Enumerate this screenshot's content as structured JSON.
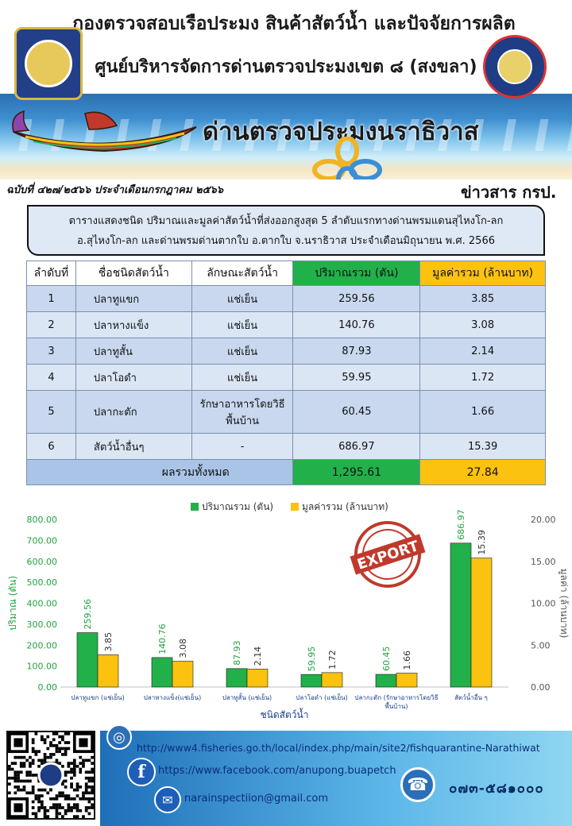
{
  "header": {
    "title_line1": "กองตรวจสอบเรือประมง สินค้าสัตว์น้ำ และปัจจัยการผลิต",
    "title_line2": "ศูนย์บริหารจัดการด่านตรวจประมงเขต ๘ (สงขลา)",
    "checkpoint_title": "ด่านตรวจประมงนราธิวาส",
    "issue": "ฉบับที่ ๔๒๗/๒๕๖๖ ประจำเดือนกรกฎาคม ๒๕๖๖",
    "news_label": "ข่าวสาร กรป.",
    "colors": {
      "sea": "#2a6fb0",
      "sand": "#f5e6c4"
    }
  },
  "table": {
    "caption_line1": "ตารางแสดงชนิด ปริมาณและมูลค่าสัตว์น้ำที่ส่งออกสูงสุด 5 ลำดับแรกทางด่านพรมแดนสุไหงโก-ลก",
    "caption_line2": "อ.สุไหงโก-ลก และด่านพรมด่านตากใบ  อ.ตากใบ จ.นราธิวาส ประจำเดือนมิถุนายน พ.ศ. 2566",
    "headers": [
      "ลำดับที่",
      "ชื่อชนิดสัตว์น้ำ",
      "ลักษณะสัตว์น้ำ",
      "ปริมาณรวม (ตัน)",
      "มูลค่ารวม (ล้านบาท)"
    ],
    "rows": [
      {
        "rank": "1",
        "name": "ปลาทูแขก",
        "type": "แช่เย็น",
        "qty": "259.56",
        "value": "3.85"
      },
      {
        "rank": "2",
        "name": "ปลาหางแข็ง",
        "type": "แช่เย็น",
        "qty": "140.76",
        "value": "3.08"
      },
      {
        "rank": "3",
        "name": "ปลาทูสั้น",
        "type": "แช่เย็น",
        "qty": "87.93",
        "value": "2.14"
      },
      {
        "rank": "4",
        "name": "ปลาโอดำ",
        "type": "แช่เย็น",
        "qty": "59.95",
        "value": "1.72"
      },
      {
        "rank": "5",
        "name": "ปลากะตัก",
        "type_line1": "รักษาอาหารโดยวิธี",
        "type_line2": "พื้นบ้าน",
        "qty": "60.45",
        "value": "1.66"
      },
      {
        "rank": "6",
        "name": "สัตว์น้ำอื่นๆ",
        "type": "-",
        "qty": "686.97",
        "value": "15.39"
      }
    ],
    "total_label": "ผลรวมทั้งหมด",
    "total_qty": "1,295.61",
    "total_value": "27.84",
    "colors": {
      "qty": "#22b04b",
      "value": "#fbc20f",
      "row": "#c9d8ef"
    }
  },
  "chart_data": {
    "type": "bar",
    "categories": [
      "ปลาทูแขก (แช่เย็น)",
      "ปลาหางแข็ง(แช่เย็น)",
      "ปลาทูสั้น (แช่เย็น)",
      "ปลาโอดำ (แช่เย็น)",
      "ปลากะตัก (รักษาอาหารโดยวิธีพื้นบ้าน)",
      "สัตว์น้ำอื่น ๆ"
    ],
    "series": [
      {
        "name": "ปริมาณรวม (ตัน)",
        "axis": "left",
        "color": "#22b04b",
        "values": [
          259.56,
          140.76,
          87.93,
          59.95,
          60.45,
          686.97
        ],
        "labels": [
          "259.56",
          "140.76",
          "87.93",
          "59.95",
          "60.45",
          "686.97"
        ]
      },
      {
        "name": "มูลค่ารวม (ล้านบาท)",
        "axis": "right",
        "color": "#fbc20f",
        "values": [
          3.85,
          3.08,
          2.14,
          1.72,
          1.66,
          15.39
        ],
        "labels": [
          "3.85",
          "3.08",
          "2.14",
          "1.72",
          "1.66",
          "15.39"
        ]
      }
    ],
    "xlabel": "ชนิดสัตว์น้ำ",
    "ylabel": "ปริมาณ (ตัน)",
    "y2label": "มูลค่า (ล้านบาท)",
    "ylim": [
      0,
      800
    ],
    "y2lim": [
      0,
      20
    ],
    "yticks": [
      "0.00",
      "100.00",
      "200.00",
      "300.00",
      "400.00",
      "500.00",
      "600.00",
      "700.00",
      "800.00"
    ],
    "y2ticks": [
      "0.00",
      "5.00",
      "10.00",
      "15.00",
      "20.00"
    ],
    "legend": "top",
    "grid": false,
    "stamp_text": "EXPORT"
  },
  "footer": {
    "website": "http://www4.fisheries.go.th/local/index.php/main/site2/fishquarantine-Narathiwat",
    "facebook": "https://www.facebook.com/anupong.buapetch",
    "email": "narainspectiion@gmail.com",
    "phone": "๐๗๓-๕๘๑๐๐๐",
    "icons": [
      "globe-icon",
      "facebook-icon",
      "mail-icon",
      "phone-icon"
    ]
  }
}
